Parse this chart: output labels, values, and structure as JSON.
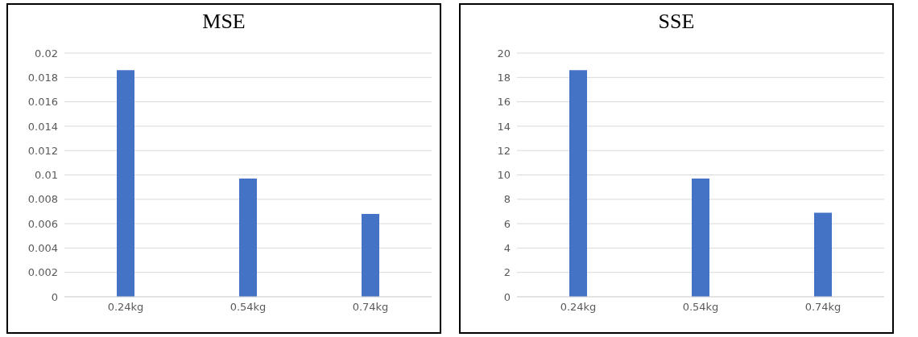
{
  "chart_data": [
    {
      "type": "bar",
      "title": "MSE",
      "categories": [
        "0.24kg",
        "0.54kg",
        "0.74kg"
      ],
      "values": [
        0.0186,
        0.0097,
        0.0068
      ],
      "color": "#4472c4",
      "ylim": [
        0,
        0.02
      ],
      "yticks": [
        0,
        0.002,
        0.004,
        0.006,
        0.008,
        0.01,
        0.012,
        0.014,
        0.016,
        0.018,
        0.02
      ],
      "grid": "y"
    },
    {
      "type": "bar",
      "title": "SSE",
      "categories": [
        "0.24kg",
        "0.54kg",
        "0.74kg"
      ],
      "values": [
        18.6,
        9.7,
        6.9
      ],
      "color": "#4472c4",
      "ylim": [
        0,
        20
      ],
      "yticks": [
        0,
        2,
        4,
        6,
        8,
        10,
        12,
        14,
        16,
        18,
        20
      ],
      "grid": "y"
    }
  ]
}
